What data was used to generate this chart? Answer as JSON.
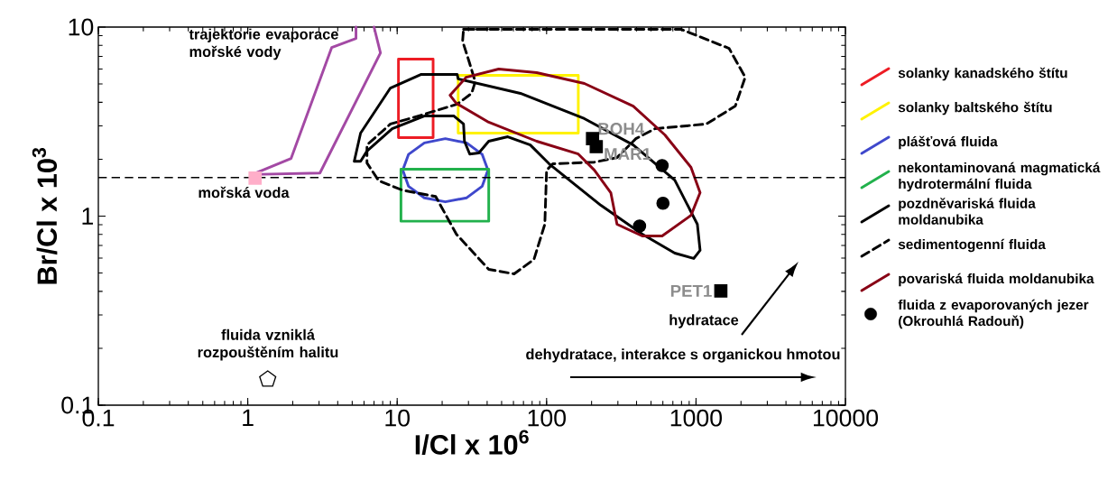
{
  "chart_data": {
    "type": "scatter",
    "xlabel": "I/Cl x 10$^{6}$",
    "ylabel": "Br/Cl x 10$^{3}$",
    "log": "xy",
    "xlim": [
      0.1,
      10000
    ],
    "ylim": [
      0.1,
      10
    ],
    "xticks": [
      0.1,
      1,
      10,
      100,
      1000,
      10000
    ],
    "yticks": [
      0.1,
      1,
      10
    ],
    "legend": "right",
    "ref_lines": [
      {
        "axis": "y",
        "value": 1.6,
        "color": "#000000",
        "line_style": "dashed"
      }
    ],
    "series": [
      {
        "type": "line",
        "color": "#a349a4",
        "x": [
          5.3,
          5.3,
          3.65,
          1.95,
          1.07,
          3.04,
          7.73,
          7.0
        ],
        "values": [
          10,
          8.7,
          7.8,
          2.02,
          1.66,
          1.69,
          7.3,
          10
        ]
      },
      {
        "marker": "square",
        "color": "#ffaec9",
        "x": [
          1.12
        ],
        "values": [
          1.59
        ]
      },
      {
        "type": "line",
        "name": "solanky kanadského štítu",
        "color": "#ed1c24",
        "x": [
          10.2,
          17.4,
          17.4,
          10.2,
          10.2,
          17.4
        ],
        "values": [
          6.77,
          6.77,
          2.6,
          2.6,
          6.77,
          6.77
        ]
      },
      {
        "type": "line",
        "name": "solanky baltského štítu",
        "color": "#fff200",
        "x": [
          25.6,
          163,
          163,
          25.6,
          25.6,
          163
        ],
        "values": [
          5.55,
          5.55,
          2.75,
          2.75,
          5.55,
          5.55
        ]
      },
      {
        "type": "line",
        "name": "plášťová fluida",
        "color": "#3f48cc",
        "x": [
          40.5,
          37.1,
          29.2,
          21.0,
          15.2,
          11.9,
          10.9,
          11.9,
          15.2,
          21.0,
          29.2,
          37.1,
          40.5,
          37.1
        ],
        "values": [
          1.75,
          2.12,
          2.44,
          2.57,
          2.44,
          2.12,
          1.75,
          1.44,
          1.25,
          1.19,
          1.25,
          1.44,
          1.75,
          2.12
        ]
      },
      {
        "type": "line",
        "name": "nekontaminovaná magmatická hydrotermální fluida",
        "color": "#22b14c",
        "x": [
          10.6,
          41,
          41,
          10.6,
          10.6,
          41
        ],
        "values": [
          1.77,
          1.77,
          0.94,
          0.94,
          1.77,
          1.77
        ]
      },
      {
        "type": "line",
        "name": "pozdněvariská fluida moldanubika",
        "color": "#000000",
        "x": [
          5.16,
          5.69,
          9.01,
          14.5,
          25.2,
          25.6,
          66.8,
          179,
          380,
          721,
          1021,
          1065,
          966,
          721,
          437,
          231,
          104,
          77.8,
          55.0,
          41.0,
          35.2,
          30.6,
          28.2,
          27.8,
          23.9,
          15.3,
          9.26,
          6.28,
          5.69,
          5.16,
          5.69
        ],
        "values": [
          1.95,
          2.75,
          4.76,
          5.62,
          5.62,
          5.32,
          4.46,
          3.28,
          2.38,
          1.55,
          0.906,
          0.659,
          0.597,
          0.637,
          0.803,
          1.14,
          1.89,
          2.38,
          2.63,
          2.49,
          2.16,
          2.13,
          2.49,
          3.07,
          3.39,
          3.39,
          2.9,
          2.21,
          1.95,
          1.95,
          2.75
        ]
      },
      {
        "type": "line",
        "name": "sedimentogenní  fluida",
        "line_style": "dashed",
        "color": "#000000",
        "x": [
          27.8,
          41.0,
          795,
          1663,
          2135,
          1832,
          1173,
          531,
          396,
          296,
          209,
          110,
          100,
          97.3,
          82.3,
          60.6,
          41.0,
          24.9,
          18.1,
          10.9,
          7.52,
          6.28,
          6.28,
          9.01,
          14.5,
          25.2,
          31.5,
          33.3,
          30.2,
          27.4,
          27.8,
          41.0
        ],
        "values": [
          9.73,
          9.73,
          9.73,
          7.72,
          5.43,
          3.82,
          3.07,
          2.9,
          2.57,
          2.04,
          1.93,
          1.89,
          1.75,
          0.906,
          0.59,
          0.495,
          0.523,
          0.803,
          1.27,
          1.37,
          1.54,
          1.91,
          2.38,
          3.07,
          3.42,
          3.91,
          4.46,
          5.14,
          6.62,
          8.43,
          9.73,
          9.73
        ]
      },
      {
        "type": "line",
        "name": "povariská fluida moldanubika",
        "color": "#880015",
        "x": [
          22.6,
          29.0,
          47.8,
          85.8,
          179,
          380,
          619,
          926,
          1065,
          926,
          593,
          437,
          296,
          269,
          209,
          163,
          85.8,
          41.0,
          24.9,
          22.6,
          29.0
        ],
        "values": [
          4.36,
          5.43,
          6.0,
          5.74,
          5.03,
          3.82,
          2.69,
          1.81,
          1.33,
          1.01,
          0.785,
          0.785,
          0.906,
          1.33,
          1.75,
          2.13,
          2.49,
          3.14,
          3.95,
          4.36,
          5.43
        ]
      },
      {
        "name": "fluida z evaporovaných jezer (Okrouhlá Radouň)",
        "marker": "circle",
        "color": "#000000",
        "x": [
          593,
          601,
          419
        ],
        "values": [
          1.85,
          1.17,
          0.886
        ]
      },
      {
        "marker": "square",
        "color": "#000000",
        "x": [
          203,
          215,
          1466
        ],
        "values": [
          2.57,
          2.33,
          0.402
        ],
        "value_labels": [
          "BOH4",
          "MAR1",
          "PET1"
        ]
      },
      {
        "color": "#000000",
        "x": [
          1.36
        ],
        "values": [
          0.137
        ]
      }
    ],
    "annotations": [
      "trajektorie evaporace mořské vody",
      "mořská voda",
      "fluida vzniklá rozpouštěním halitu",
      "hydratace",
      "dehydratace, interakce s organickou hmotou"
    ]
  }
}
